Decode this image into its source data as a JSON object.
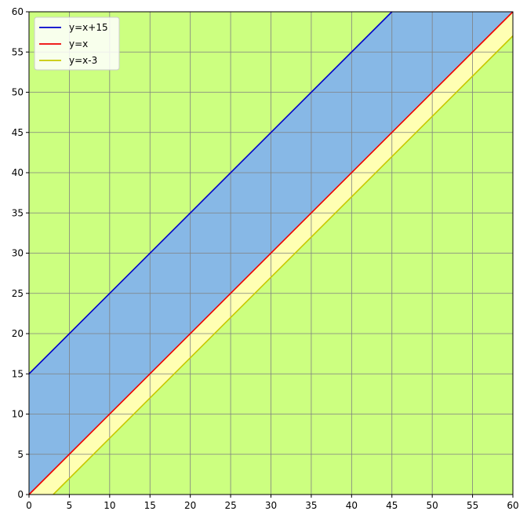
{
  "chart_data": {
    "type": "line",
    "title": "",
    "xlabel": "",
    "ylabel": "",
    "xlim": [
      0,
      60
    ],
    "ylim": [
      0,
      60
    ],
    "xticks": [
      0,
      5,
      10,
      15,
      20,
      25,
      30,
      35,
      40,
      45,
      50,
      55,
      60
    ],
    "yticks": [
      0,
      5,
      10,
      15,
      20,
      25,
      30,
      35,
      40,
      45,
      50,
      55,
      60
    ],
    "grid": true,
    "legend_position": "top-left",
    "background_color": "#ccff80",
    "series": [
      {
        "name": "y=x+15",
        "color": "#0000cc",
        "x": [
          0,
          45
        ],
        "y": [
          15,
          60
        ]
      },
      {
        "name": "y=x",
        "color": "#ee0000",
        "x": [
          0,
          60
        ],
        "y": [
          0,
          60
        ]
      },
      {
        "name": "y=x-3",
        "color": "#c8c800",
        "x": [
          3,
          60
        ],
        "y": [
          0,
          57
        ]
      }
    ],
    "fills": [
      {
        "between": [
          "y=x",
          "y=x+15"
        ],
        "color": "#87b8e6"
      },
      {
        "between": [
          "y=x-3",
          "y=x"
        ],
        "color": "#ffffb3"
      }
    ]
  }
}
